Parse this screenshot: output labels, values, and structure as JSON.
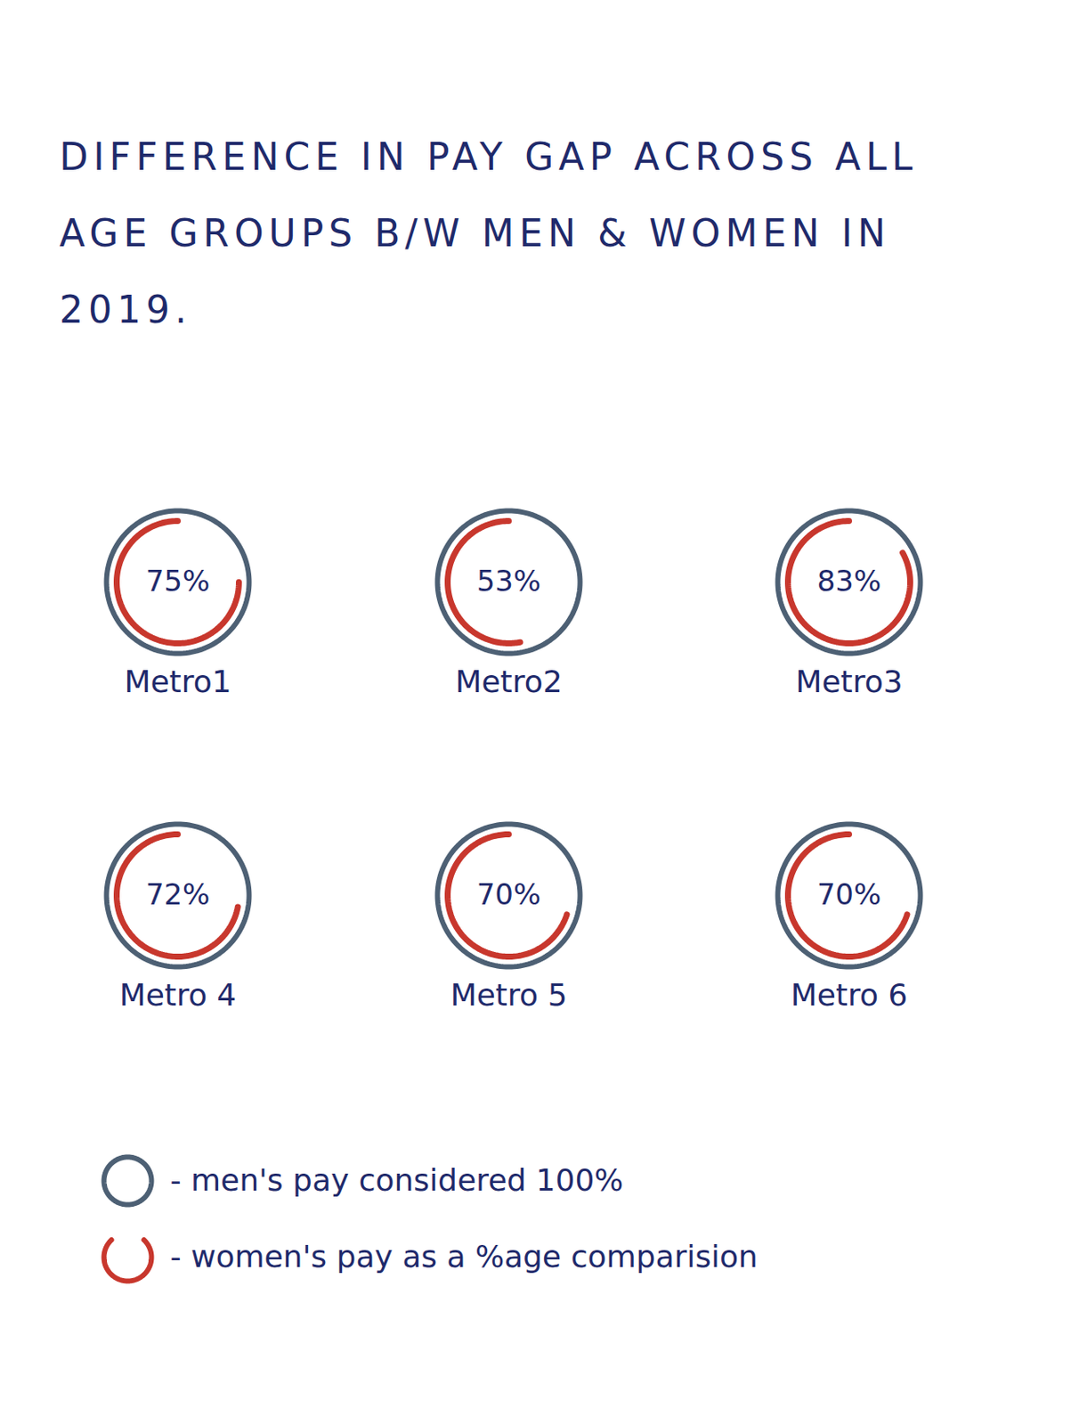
{
  "chart_data": {
    "type": "donut",
    "title": "DIFFERENCE IN PAY GAP ACROSS ALL AGE GROUPS B/W MEN & WOMEN IN 2019.",
    "categories": [
      "Metro1",
      "Metro2",
      "Metro3",
      "Metro 4",
      "Metro 5",
      "Metro 6"
    ],
    "series": [
      {
        "name": "- men's pay considered 100%",
        "color": "#4d6074",
        "values": [
          100,
          100,
          100,
          100,
          100,
          100
        ]
      },
      {
        "name": "- women's pay as a %age comparision",
        "color": "#c8372d",
        "values": [
          75,
          53,
          83,
          72,
          70,
          70
        ],
        "value_labels": [
          "75%",
          "53%",
          "83%",
          "72%",
          "70%",
          "70%"
        ]
      }
    ],
    "data_labels": true,
    "legend": "bottom"
  }
}
